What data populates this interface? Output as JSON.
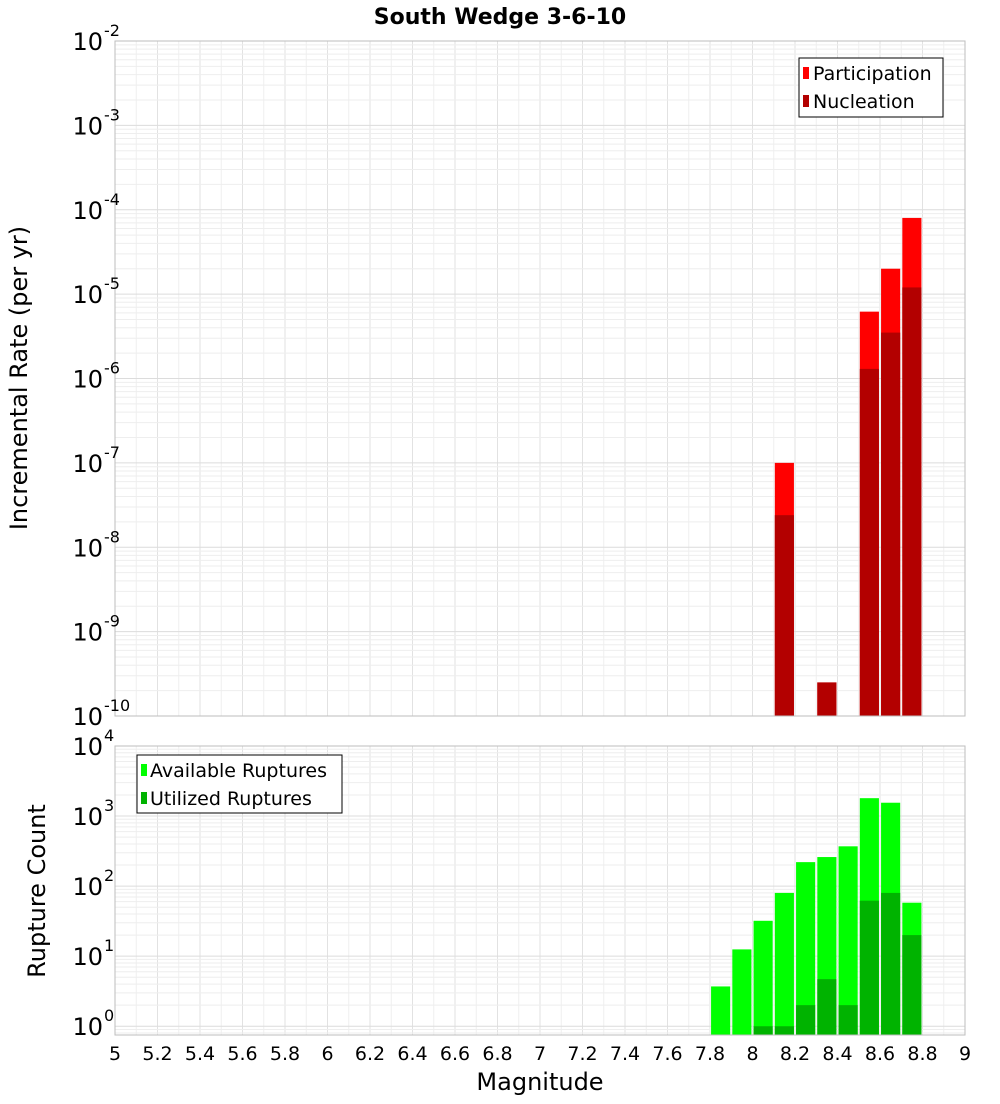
{
  "chart_data": [
    {
      "type": "bar",
      "title": "South Wedge 3-6-10",
      "xlabel": "",
      "ylabel": "Incremental Rate (per yr)",
      "yscale": "log",
      "xlim": [
        5,
        9
      ],
      "ylim": [
        1e-10,
        0.01
      ],
      "y_ticks": [
        {
          "base": "10",
          "exp": "-10"
        },
        {
          "base": "10",
          "exp": "-9"
        },
        {
          "base": "10",
          "exp": "-8"
        },
        {
          "base": "10",
          "exp": "-7"
        },
        {
          "base": "10",
          "exp": "-6"
        },
        {
          "base": "10",
          "exp": "-5"
        },
        {
          "base": "10",
          "exp": "-4"
        },
        {
          "base": "10",
          "exp": "-3"
        },
        {
          "base": "10",
          "exp": "-2"
        }
      ],
      "grid": true,
      "legend": "top-right",
      "bar_width": 0.09,
      "series": [
        {
          "name": "Participation",
          "color": "#ff0000",
          "x": [
            8.15,
            8.35,
            8.55,
            8.65,
            8.75
          ],
          "values": [
            1e-07,
            2.5e-10,
            6.2e-06,
            2e-05,
            8e-05
          ]
        },
        {
          "name": "Nucleation",
          "color": "#b30000",
          "x": [
            8.15,
            8.35,
            8.55,
            8.65,
            8.75
          ],
          "values": [
            2.4e-08,
            2.5e-10,
            1.3e-06,
            3.5e-06,
            1.2e-05
          ]
        }
      ]
    },
    {
      "type": "bar",
      "title": "",
      "xlabel": "Magnitude",
      "ylabel": "Rupture Count",
      "yscale": "log",
      "xlim": [
        5,
        9
      ],
      "ylim": [
        0.75,
        10000
      ],
      "y_ticks": [
        {
          "base": "10",
          "exp": "0"
        },
        {
          "base": "10",
          "exp": "1"
        },
        {
          "base": "10",
          "exp": "2"
        },
        {
          "base": "10",
          "exp": "3"
        },
        {
          "base": "10",
          "exp": "4"
        }
      ],
      "x_ticks": [
        "5",
        "5.2",
        "5.4",
        "5.6",
        "5.8",
        "6",
        "6.2",
        "6.4",
        "6.6",
        "6.8",
        "7",
        "7.2",
        "7.4",
        "7.6",
        "7.8",
        "8",
        "8.2",
        "8.4",
        "8.6",
        "8.8",
        "9"
      ],
      "grid": true,
      "legend": "top-left",
      "bar_width": 0.09,
      "series": [
        {
          "name": "Available Ruptures",
          "color": "#00ff00",
          "x": [
            7.85,
            7.95,
            8.05,
            8.15,
            8.25,
            8.35,
            8.45,
            8.55,
            8.65,
            8.75
          ],
          "values": [
            3.7,
            12.5,
            32,
            80,
            220,
            260,
            370,
            1800,
            1550,
            58
          ]
        },
        {
          "name": "Utilized Ruptures",
          "color": "#00b300",
          "x": [
            8.05,
            8.15,
            8.25,
            8.35,
            8.45,
            8.55,
            8.65,
            8.75
          ],
          "values": [
            1,
            1,
            2,
            4.7,
            2,
            62,
            80,
            20
          ]
        }
      ]
    }
  ]
}
